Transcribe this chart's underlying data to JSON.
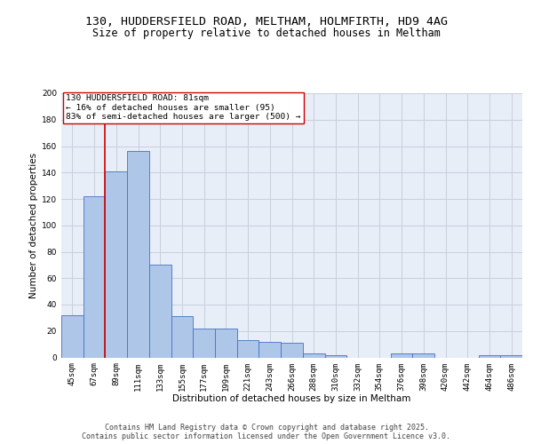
{
  "title_line1": "130, HUDDERSFIELD ROAD, MELTHAM, HOLMFIRTH, HD9 4AG",
  "title_line2": "Size of property relative to detached houses in Meltham",
  "xlabel": "Distribution of detached houses by size in Meltham",
  "ylabel": "Number of detached properties",
  "categories": [
    "45sqm",
    "67sqm",
    "89sqm",
    "111sqm",
    "133sqm",
    "155sqm",
    "177sqm",
    "199sqm",
    "221sqm",
    "243sqm",
    "266sqm",
    "288sqm",
    "310sqm",
    "332sqm",
    "354sqm",
    "376sqm",
    "398sqm",
    "420sqm",
    "442sqm",
    "464sqm",
    "486sqm"
  ],
  "values": [
    32,
    122,
    141,
    156,
    70,
    31,
    22,
    22,
    13,
    12,
    11,
    3,
    2,
    0,
    0,
    3,
    3,
    0,
    0,
    2,
    2
  ],
  "bar_color": "#aec6e8",
  "bar_edge_color": "#4472c4",
  "vline_x": 1.5,
  "vline_color": "#cc0000",
  "annotation_text": "130 HUDDERSFIELD ROAD: 81sqm\n← 16% of detached houses are smaller (95)\n83% of semi-detached houses are larger (500) →",
  "annotation_box_color": "#ffffff",
  "annotation_box_edge": "#cc0000",
  "ylim": [
    0,
    200
  ],
  "yticks": [
    0,
    20,
    40,
    60,
    80,
    100,
    120,
    140,
    160,
    180,
    200
  ],
  "grid_color": "#c8d0dc",
  "bg_color": "#e8eef8",
  "footer": "Contains HM Land Registry data © Crown copyright and database right 2025.\nContains public sector information licensed under the Open Government Licence v3.0.",
  "title_fontsize": 9.5,
  "subtitle_fontsize": 8.5,
  "axis_label_fontsize": 7.5,
  "tick_fontsize": 6.5,
  "annotation_fontsize": 6.8,
  "footer_fontsize": 6.0
}
